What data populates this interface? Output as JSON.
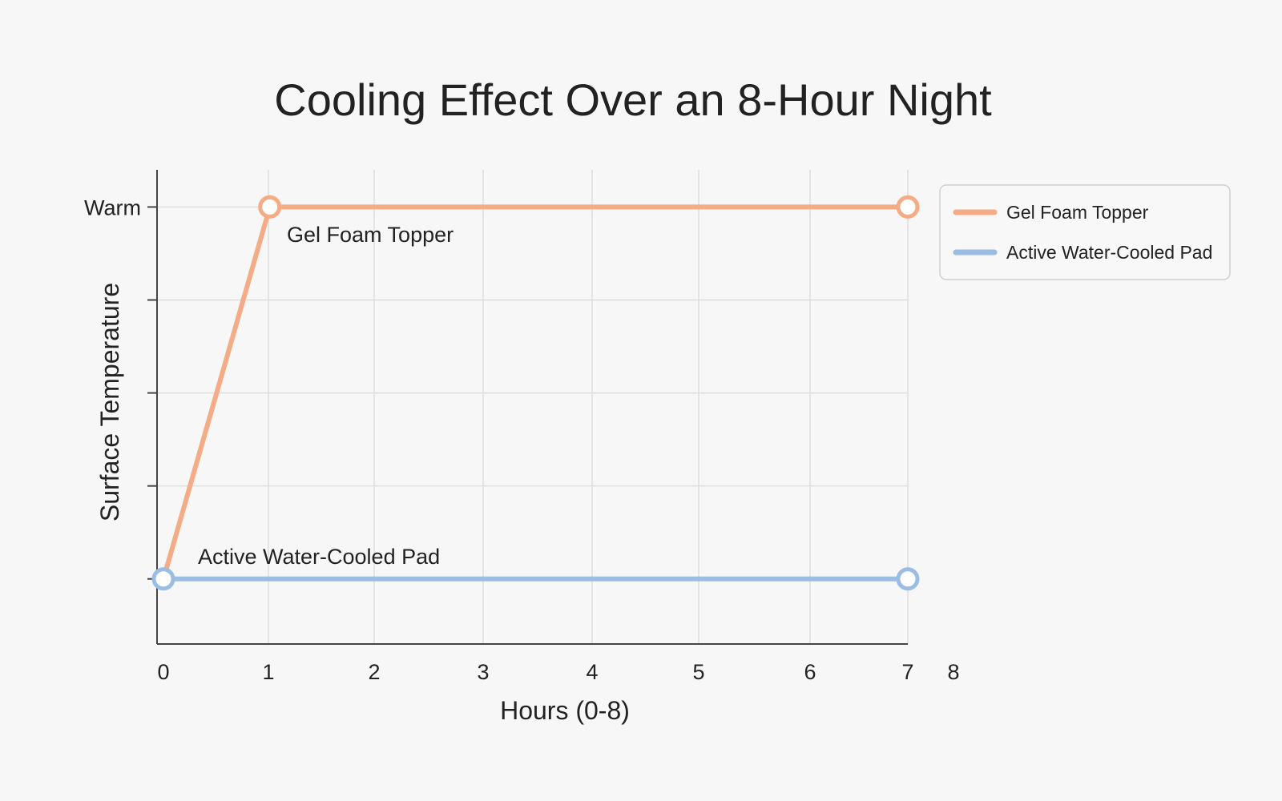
{
  "chart_data": {
    "type": "line",
    "title": "Cooling Effect Over an 8-Hour Night",
    "xlabel": "Hours (0-8)",
    "ylabel": "Surface Temperature",
    "x_ticks": [
      "0",
      "1",
      "2",
      "3",
      "4",
      "5",
      "6",
      "7",
      "8"
    ],
    "y_ticks": [
      "",
      "",
      "",
      "",
      "Warm"
    ],
    "xlim": [
      0,
      7
    ],
    "ylim": [
      -0.7,
      4.4
    ],
    "grid": true,
    "legend_position": "top-right",
    "series": [
      {
        "name": "Gel Foam Topper",
        "color": "#f4ac86",
        "x": [
          0,
          1,
          7
        ],
        "y": [
          0,
          4,
          4
        ],
        "markers_at": [
          1,
          7
        ],
        "annotation": "Gel Foam Topper"
      },
      {
        "name": "Active Water-Cooled Pad",
        "color": "#9bbde4",
        "x": [
          0,
          7
        ],
        "y": [
          0,
          0
        ],
        "markers_at": [
          0,
          7
        ],
        "annotation": "Active Water-Cooled Pad"
      }
    ]
  }
}
